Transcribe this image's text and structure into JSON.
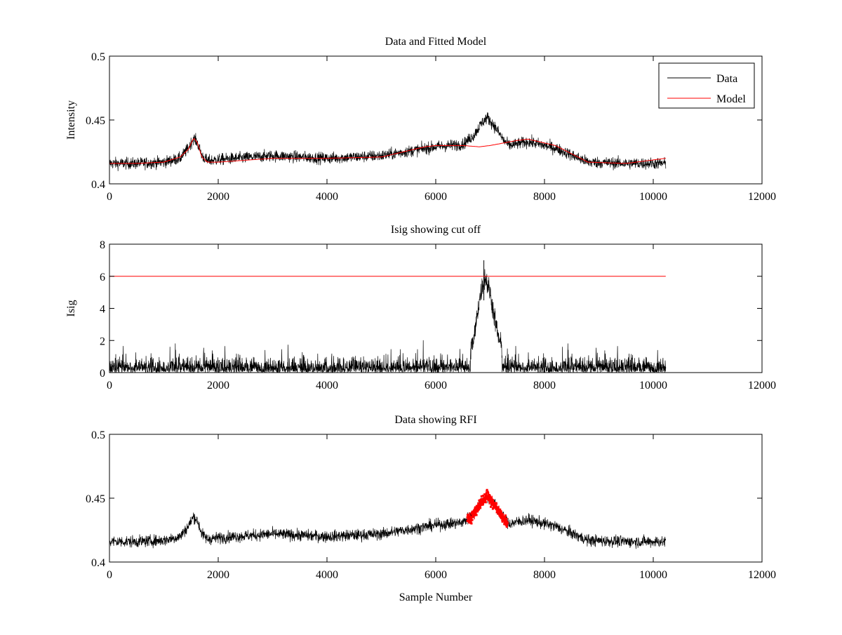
{
  "chart_data": [
    {
      "type": "line",
      "title": "Data and Fitted Model",
      "xlabel": "",
      "ylabel": "Intensity",
      "xlim": [
        0,
        12000
      ],
      "ylim": [
        0.4,
        0.5
      ],
      "xticks": [
        0,
        2000,
        4000,
        6000,
        8000,
        10000,
        12000
      ],
      "xtick_labels": [
        "0",
        "2000",
        "4000",
        "6000",
        "8000",
        "10000",
        "12000"
      ],
      "yticks": [
        0.4,
        0.45,
        0.5
      ],
      "ytick_labels": [
        "0.4",
        "0.45",
        "0.5"
      ],
      "grid": false,
      "legend": {
        "placement": "top-right",
        "entries": [
          "Data",
          "Model"
        ]
      },
      "series": [
        {
          "name": "Data",
          "color": "#000000",
          "kind": "noisy_line",
          "noise": 0.0045,
          "x": [
            0,
            500,
            1000,
            1300,
            1450,
            1550,
            1620,
            1700,
            1800,
            2000,
            3000,
            4000,
            5000,
            6000,
            6500,
            6700,
            6850,
            6950,
            7100,
            7250,
            7350,
            7700,
            8200,
            8800,
            9500,
            10230
          ],
          "y": [
            0.416,
            0.416,
            0.417,
            0.42,
            0.428,
            0.436,
            0.432,
            0.422,
            0.418,
            0.419,
            0.422,
            0.42,
            0.422,
            0.429,
            0.431,
            0.438,
            0.448,
            0.452,
            0.444,
            0.434,
            0.43,
            0.433,
            0.428,
            0.417,
            0.416,
            0.416
          ]
        },
        {
          "name": "Model",
          "color": "#ff0000",
          "kind": "line",
          "x": [
            0,
            500,
            1000,
            1300,
            1450,
            1550,
            1620,
            1700,
            1800,
            2000,
            3000,
            4000,
            5000,
            5800,
            6000,
            6500,
            6800,
            7000,
            7500,
            7700,
            8200,
            8800,
            9500,
            10230
          ],
          "y": [
            0.416,
            0.416,
            0.417,
            0.421,
            0.427,
            0.436,
            0.432,
            0.421,
            0.417,
            0.417,
            0.42,
            0.42,
            0.421,
            0.429,
            0.43,
            0.43,
            0.429,
            0.43,
            0.434,
            0.435,
            0.43,
            0.417,
            0.416,
            0.42
          ]
        }
      ]
    },
    {
      "type": "line",
      "title": "Isig showing cut off",
      "xlabel": "",
      "ylabel": "Isig",
      "xlim": [
        0,
        12000
      ],
      "ylim": [
        0,
        8
      ],
      "xticks": [
        0,
        2000,
        4000,
        6000,
        8000,
        10000,
        12000
      ],
      "xtick_labels": [
        "0",
        "2000",
        "4000",
        "6000",
        "8000",
        "10000",
        "12000"
      ],
      "yticks": [
        0,
        2,
        4,
        6,
        8
      ],
      "ytick_labels": [
        "0",
        "2",
        "4",
        "6",
        "8"
      ],
      "grid": false,
      "series": [
        {
          "color": "#000000",
          "kind": "spiky",
          "x": [
            0,
            6600,
            6700,
            6800,
            6900,
            7000,
            7050,
            7150,
            7250,
            10230
          ],
          "y": [
            1.2,
            1.2,
            2.0,
            4.5,
            6.0,
            5.0,
            4.0,
            2.2,
            1.2,
            1.2
          ],
          "peak": 7.0
        },
        {
          "color": "#ff0000",
          "kind": "line",
          "x": [
            0,
            10230
          ],
          "y": [
            6,
            6
          ]
        }
      ]
    },
    {
      "type": "line",
      "title": "Data showing RFI",
      "xlabel": "Sample Number",
      "ylabel": "",
      "xlim": [
        0,
        12000
      ],
      "ylim": [
        0.4,
        0.5
      ],
      "xticks": [
        0,
        2000,
        4000,
        6000,
        8000,
        10000,
        12000
      ],
      "xtick_labels": [
        "0",
        "2000",
        "4000",
        "6000",
        "8000",
        "10000",
        "12000"
      ],
      "yticks": [
        0.4,
        0.45,
        0.5
      ],
      "ytick_labels": [
        "0.4",
        "0.45",
        "0.5"
      ],
      "grid": false,
      "series": [
        {
          "color": "#000000",
          "kind": "noisy_line",
          "noise": 0.0045,
          "x": [
            0,
            500,
            1000,
            1300,
            1450,
            1550,
            1620,
            1700,
            1800,
            2000,
            3000,
            4000,
            5000,
            6000,
            6500,
            6700,
            6850,
            6950,
            7100,
            7250,
            7350,
            7700,
            8200,
            8800,
            9500,
            10230
          ],
          "y": [
            0.416,
            0.416,
            0.417,
            0.42,
            0.428,
            0.436,
            0.432,
            0.422,
            0.418,
            0.419,
            0.422,
            0.42,
            0.422,
            0.429,
            0.431,
            0.438,
            0.448,
            0.452,
            0.444,
            0.434,
            0.43,
            0.433,
            0.428,
            0.417,
            0.416,
            0.416
          ]
        },
        {
          "color": "#ff0000",
          "kind": "markers",
          "noise": 0.0045,
          "x": [
            6580,
            6700,
            6850,
            6950,
            7100,
            7250,
            7320
          ],
          "y": [
            0.432,
            0.438,
            0.448,
            0.452,
            0.444,
            0.434,
            0.43
          ]
        }
      ]
    }
  ]
}
